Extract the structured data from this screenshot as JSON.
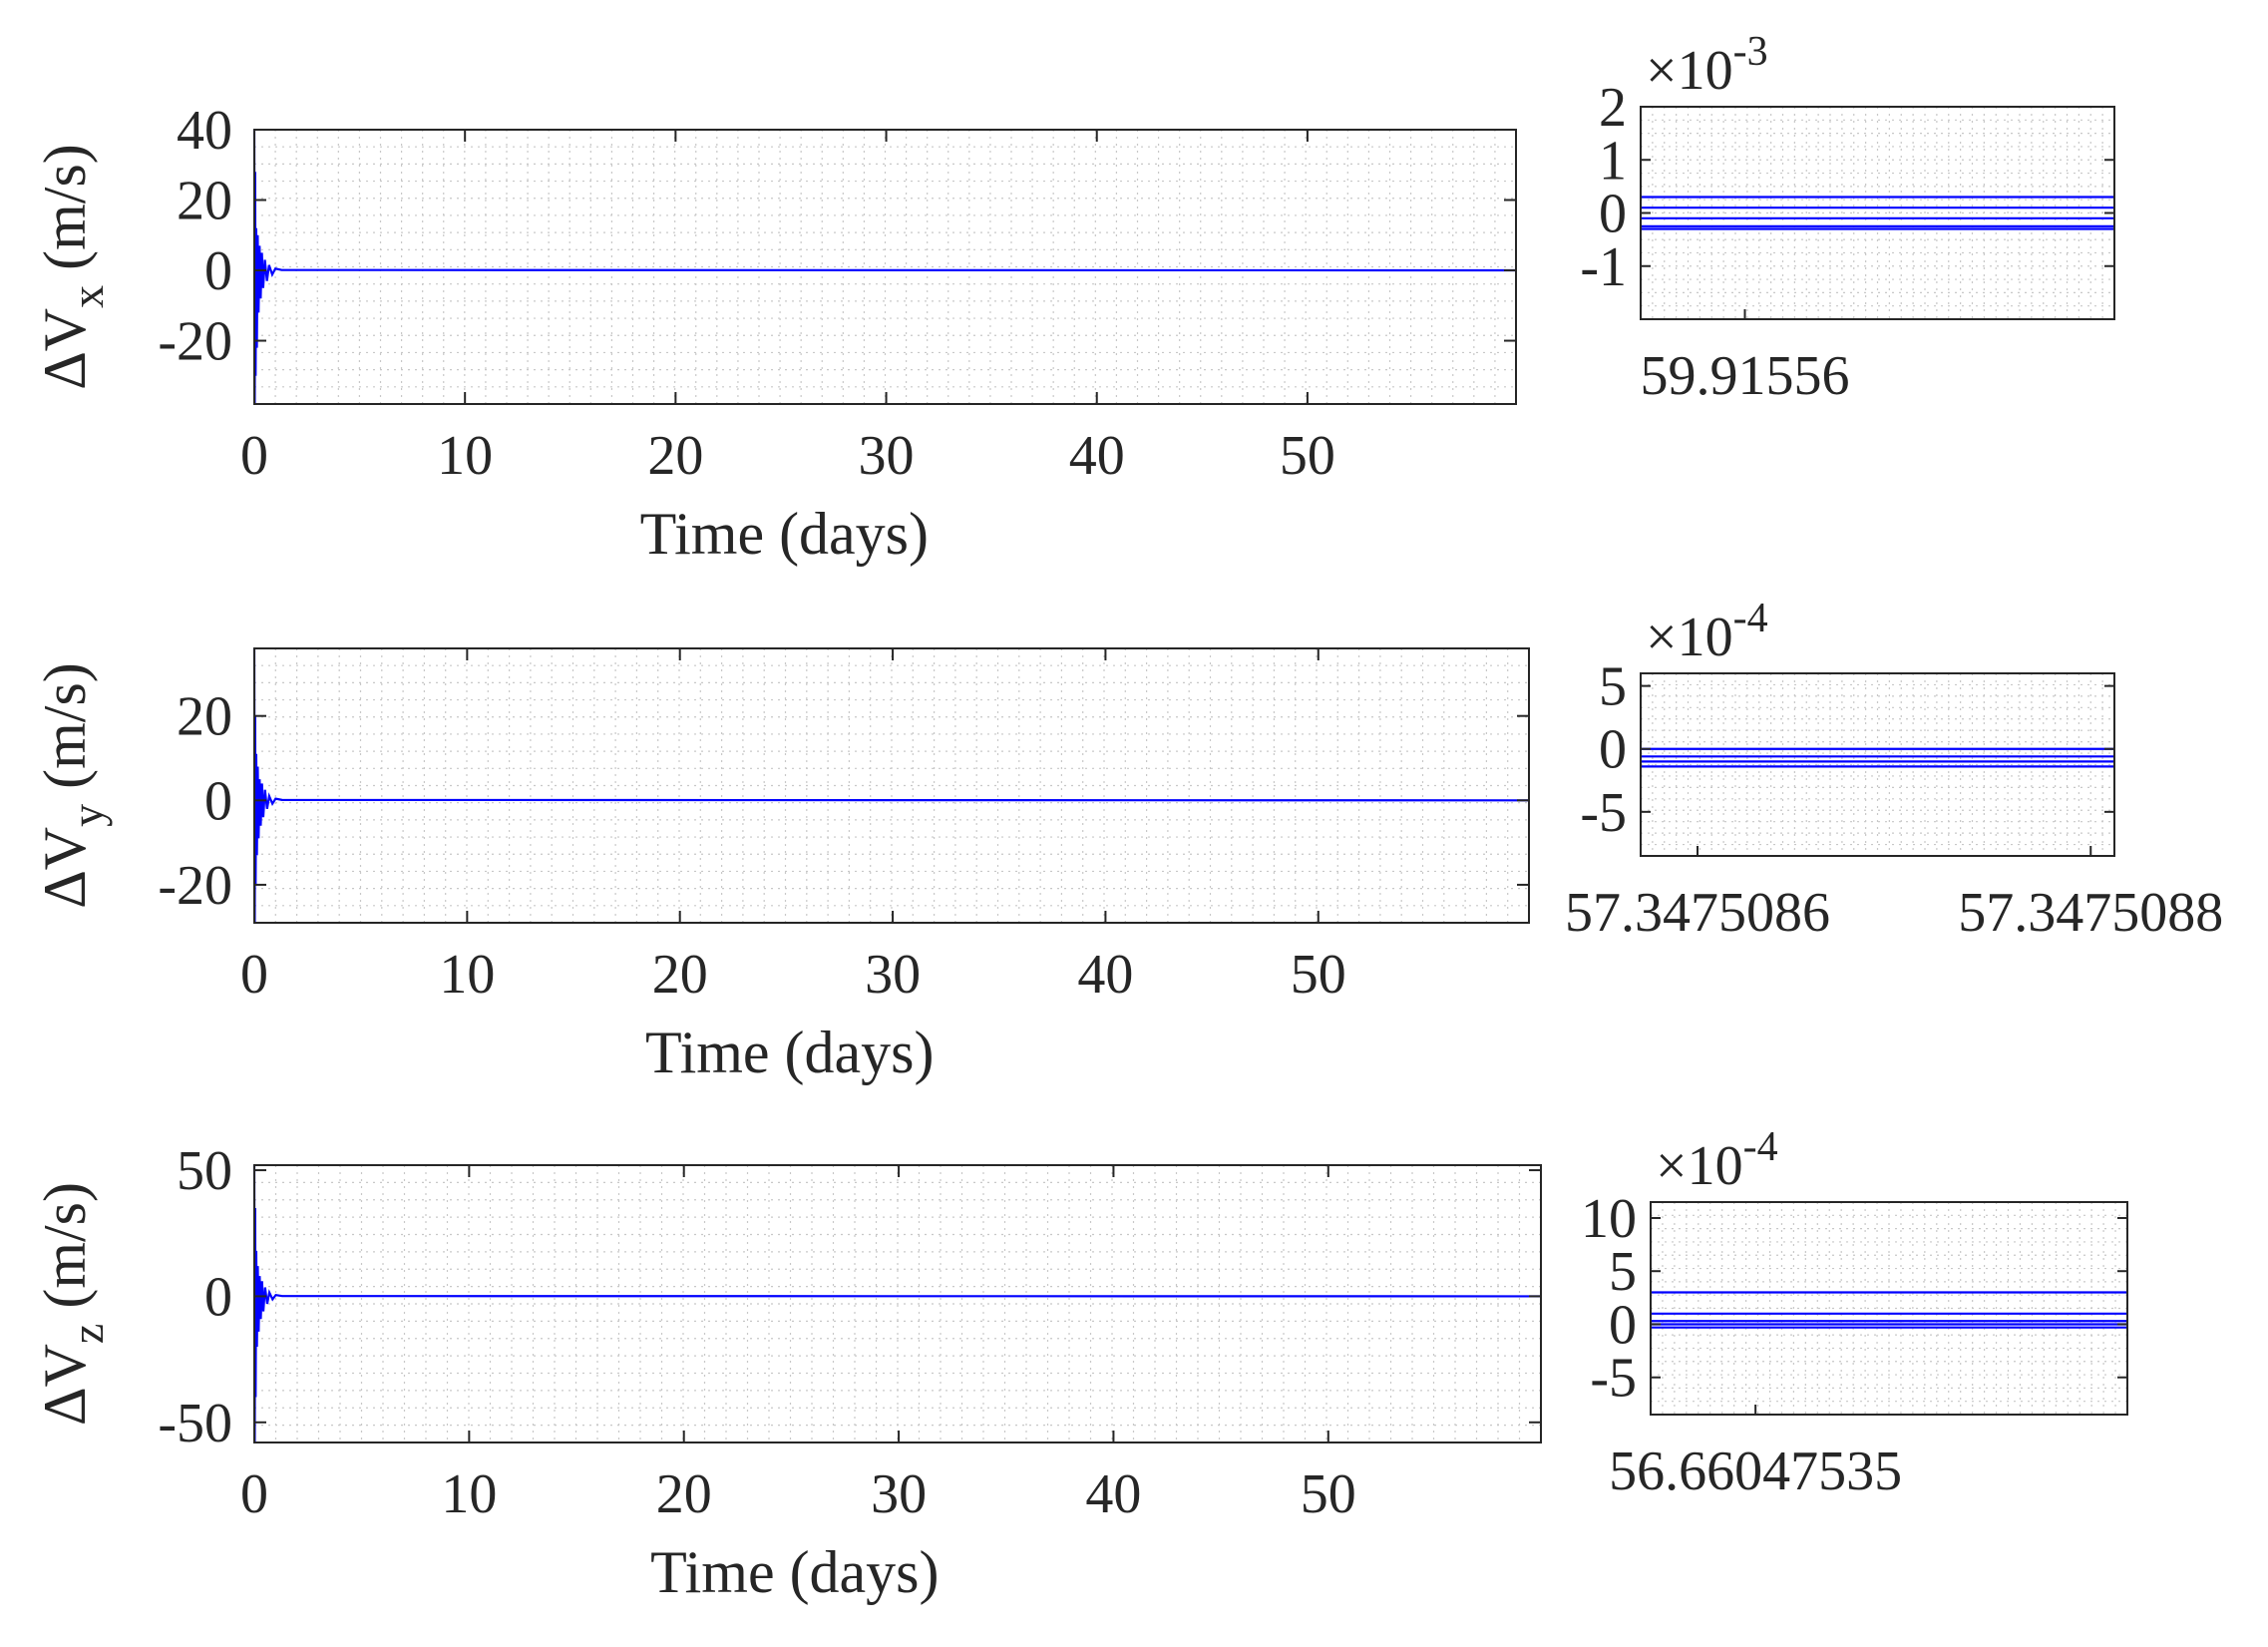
{
  "chart_data": [
    {
      "type": "line",
      "panel": "main-x",
      "ylabel": {
        "prefix": "ΔV",
        "sub": "x",
        "suffix": " (m/s)"
      },
      "xlabel": "Time (days)",
      "xlim": [
        0,
        59.9
      ],
      "ylim": [
        -38,
        40
      ],
      "xticks": [
        0,
        10,
        20,
        30,
        40,
        50
      ],
      "yticks": [
        -20,
        0,
        20,
        40
      ],
      "grid": "minor-dotted",
      "line_color": "#0000ff",
      "series": [
        {
          "x": [
            0,
            0.02,
            0.04,
            0.06,
            0.09,
            0.12,
            0.16,
            0.2,
            0.25,
            0.3,
            0.36,
            0.42,
            0.5,
            0.6,
            0.7,
            0.85,
            1.0,
            1.3,
            59.9
          ],
          "values": [
            40,
            -38,
            28,
            -30,
            12,
            -22,
            10,
            -12,
            7,
            -8,
            5,
            -5,
            3,
            -3,
            1.5,
            -1.2,
            0.5,
            0.1,
            0
          ]
        }
      ]
    },
    {
      "type": "line",
      "panel": "inset-x",
      "exponent": {
        "base": "×10",
        "power": "-3"
      },
      "xtick_labels": [
        "59.91556"
      ],
      "ylim": [
        -2,
        2
      ],
      "yticks": [
        -1,
        0,
        1,
        2
      ],
      "grid": "minor-dotted",
      "line_color": "#0000ff",
      "levels": [
        0.3,
        0.1,
        -0.1,
        -0.25,
        -0.3
      ]
    },
    {
      "type": "line",
      "panel": "main-y",
      "ylabel": {
        "prefix": "ΔV",
        "sub": "y",
        "suffix": " (m/s)"
      },
      "xlabel": "Time (days)",
      "xlim": [
        0,
        59.9
      ],
      "ylim": [
        -29,
        36
      ],
      "xticks": [
        0,
        10,
        20,
        30,
        40,
        50
      ],
      "yticks": [
        -20,
        0,
        20
      ],
      "grid": "minor-dotted",
      "line_color": "#0000ff",
      "series": [
        {
          "x": [
            0,
            0.02,
            0.04,
            0.06,
            0.09,
            0.12,
            0.16,
            0.2,
            0.25,
            0.3,
            0.36,
            0.42,
            0.5,
            0.6,
            0.7,
            0.85,
            1.0,
            1.3,
            59.9
          ],
          "values": [
            36,
            -29,
            20,
            -20,
            11,
            -13,
            8,
            -9,
            5,
            -6,
            4,
            -4,
            2.5,
            -2,
            1,
            -0.8,
            0.4,
            0.1,
            0
          ]
        }
      ]
    },
    {
      "type": "line",
      "panel": "inset-y",
      "exponent": {
        "base": "×10",
        "power": "-4"
      },
      "xtick_labels": [
        "57.3475086",
        "57.3475088"
      ],
      "ylim": [
        -8.5,
        6
      ],
      "yticks": [
        -5,
        0,
        5
      ],
      "grid": "minor-dotted",
      "line_color": "#0000ff",
      "levels": [
        0,
        -0.6,
        -1.0,
        -1.4
      ]
    },
    {
      "type": "line",
      "panel": "main-z",
      "ylabel": {
        "prefix": "ΔV",
        "sub": "z",
        "suffix": " (m/s)"
      },
      "xlabel": "Time (days)",
      "xlim": [
        0,
        59.9
      ],
      "ylim": [
        -58,
        52
      ],
      "xticks": [
        0,
        10,
        20,
        30,
        40,
        50
      ],
      "yticks": [
        -50,
        0,
        50
      ],
      "grid": "minor-dotted",
      "line_color": "#0000ff",
      "series": [
        {
          "x": [
            0,
            0.02,
            0.04,
            0.06,
            0.09,
            0.12,
            0.16,
            0.2,
            0.25,
            0.3,
            0.36,
            0.42,
            0.5,
            0.6,
            0.7,
            0.85,
            1.0,
            1.3,
            59.9
          ],
          "values": [
            52,
            -58,
            35,
            -40,
            18,
            -20,
            12,
            -14,
            8,
            -9,
            6,
            -6,
            3.5,
            -3,
            1.5,
            -1.2,
            0.5,
            0.1,
            0
          ]
        }
      ]
    },
    {
      "type": "line",
      "panel": "inset-z",
      "exponent": {
        "base": "×10",
        "power": "-4"
      },
      "xtick_labels": [
        "56.66047535"
      ],
      "ylim": [
        -8.5,
        11.5
      ],
      "yticks": [
        -5,
        0,
        5,
        10
      ],
      "grid": "minor-dotted",
      "line_color": "#0000ff",
      "levels": [
        3,
        1,
        0.3,
        0,
        -0.3
      ]
    }
  ]
}
